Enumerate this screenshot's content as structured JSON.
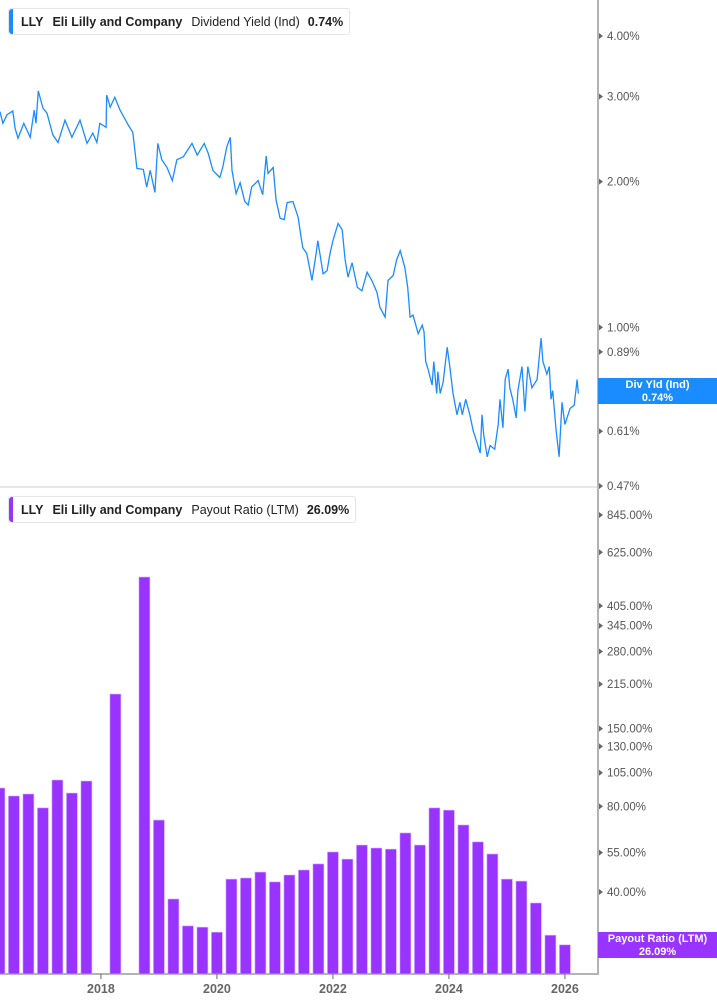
{
  "colors": {
    "yield": "#1a8cff",
    "payout": "#9933ff",
    "axis": "#b3b3b3"
  },
  "top_panel": {
    "legend": {
      "ticker": "LLY",
      "company": "Eli Lilly and Company",
      "metric": "Dividend Yield (Ind)",
      "value": "0.74%"
    },
    "tag": {
      "label": "Div Yld (Ind)",
      "value": "0.74%"
    },
    "y_ticks": [
      "4.00%",
      "3.00%",
      "2.00%",
      "1.00%",
      "0.89%",
      "0.75%",
      "0.61%",
      "0.47%"
    ]
  },
  "bottom_panel": {
    "legend": {
      "ticker": "LLY",
      "company": "Eli Lilly and Company",
      "metric": "Payout Ratio (LTM)",
      "value": "26.09%"
    },
    "tag": {
      "label": "Payout Ratio (LTM)",
      "value": "26.09%"
    },
    "y_ticks": [
      "845.00%",
      "625.00%",
      "405.00%",
      "345.00%",
      "280.00%",
      "215.00%",
      "150.00%",
      "130.00%",
      "105.00%",
      "80.00%",
      "55.00%",
      "40.00%",
      "25.00%"
    ]
  },
  "x_ticks": [
    "2018",
    "2020",
    "2022",
    "2024",
    "2026"
  ],
  "chart_data": [
    {
      "type": "line",
      "series": [
        {
          "name": "Dividend Yield (Ind)",
          "x": [
            2016.26,
            2016.31,
            2016.38,
            2016.48,
            2016.52,
            2016.57,
            2016.67,
            2016.78,
            2016.85,
            2016.88,
            2016.92,
            2017.0,
            2017.07,
            2017.17,
            2017.26,
            2017.38,
            2017.5,
            2017.64,
            2017.76,
            2017.86,
            2017.93,
            2017.98,
            2018.09,
            2018.1,
            2018.16,
            2018.24,
            2018.33,
            2018.47,
            2018.55,
            2018.59,
            2018.62,
            2018.73,
            2018.79,
            2018.85,
            2018.93,
            2018.98,
            2019.05,
            2019.14,
            2019.23,
            2019.31,
            2019.42,
            2019.57,
            2019.66,
            2019.78,
            2019.85,
            2019.93,
            2020.05,
            2020.1,
            2020.17,
            2020.23,
            2020.26,
            2020.33,
            2020.4,
            2020.48,
            2020.54,
            2020.6,
            2020.71,
            2020.79,
            2020.85,
            2020.88,
            2020.97,
            2021.02,
            2021.09,
            2021.16,
            2021.21,
            2021.31,
            2021.4,
            2021.45,
            2021.48,
            2021.55,
            2021.64,
            2021.71,
            2021.74,
            2021.83,
            2021.9,
            2021.95,
            2022.0,
            2022.09,
            2022.16,
            2022.21,
            2022.26,
            2022.33,
            2022.42,
            2022.5,
            2022.59,
            2022.67,
            2022.76,
            2022.81,
            2022.9,
            2022.95,
            2023.04,
            2023.1,
            2023.16,
            2023.24,
            2023.29,
            2023.33,
            2023.38,
            2023.47,
            2023.54,
            2023.57,
            2023.6,
            2023.64,
            2023.71,
            2023.74,
            2023.79,
            2023.81,
            2023.85,
            2023.9,
            2023.97,
            2024.02,
            2024.07,
            2024.14,
            2024.19,
            2024.23,
            2024.29,
            2024.36,
            2024.42,
            2024.48,
            2024.54,
            2024.57,
            2024.6,
            2024.66,
            2024.71,
            2024.79,
            2024.85,
            2024.88,
            2024.93,
            2024.97,
            2025.02,
            2025.05,
            2025.1,
            2025.16,
            2025.19,
            2025.26,
            2025.31,
            2025.36,
            2025.43,
            2025.52,
            2025.59,
            2025.62,
            2025.69,
            2025.73,
            2025.76,
            2025.79,
            2025.85,
            2025.9,
            2025.95,
            2026.0,
            2026.09,
            2026.16,
            2026.21,
            2026.23
          ],
          "y": [
            2.79,
            2.64,
            2.75,
            2.8,
            2.58,
            2.46,
            2.64,
            2.47,
            2.81,
            2.64,
            3.08,
            2.84,
            2.77,
            2.5,
            2.41,
            2.68,
            2.47,
            2.68,
            2.4,
            2.52,
            2.41,
            2.64,
            2.59,
            3.02,
            2.85,
            2.99,
            2.81,
            2.62,
            2.53,
            2.3,
            2.13,
            2.12,
            1.95,
            2.11,
            1.9,
            2.4,
            2.22,
            2.14,
            2.01,
            2.22,
            2.25,
            2.4,
            2.27,
            2.4,
            2.29,
            2.11,
            2.04,
            2.14,
            2.36,
            2.47,
            2.11,
            1.89,
            1.99,
            1.82,
            1.79,
            1.95,
            2.01,
            1.88,
            2.26,
            2.08,
            2.14,
            1.83,
            1.68,
            1.67,
            1.81,
            1.82,
            1.69,
            1.54,
            1.46,
            1.42,
            1.25,
            1.42,
            1.51,
            1.29,
            1.31,
            1.42,
            1.51,
            1.64,
            1.59,
            1.38,
            1.27,
            1.36,
            1.21,
            1.19,
            1.3,
            1.25,
            1.18,
            1.1,
            1.05,
            1.25,
            1.28,
            1.38,
            1.44,
            1.33,
            1.21,
            1.05,
            1.06,
            0.97,
            1.01,
            0.98,
            0.85,
            0.82,
            0.76,
            0.85,
            0.73,
            0.81,
            0.73,
            0.77,
            0.91,
            0.82,
            0.73,
            0.66,
            0.7,
            0.66,
            0.71,
            0.66,
            0.61,
            0.58,
            0.55,
            0.66,
            0.6,
            0.54,
            0.57,
            0.56,
            0.63,
            0.71,
            0.62,
            0.78,
            0.82,
            0.75,
            0.71,
            0.65,
            0.74,
            0.83,
            0.67,
            0.83,
            0.75,
            0.78,
            0.95,
            0.85,
            0.8,
            0.83,
            0.71,
            0.74,
            0.61,
            0.54,
            0.7,
            0.63,
            0.68,
            0.69,
            0.78,
            0.73
          ]
        }
      ],
      "ylabel": "",
      "yscale": "log",
      "ylim": [
        0.47,
        4.0
      ],
      "last_value": 0.74
    },
    {
      "type": "bar",
      "categories": [
        "Q1 2016",
        "Q2 2016",
        "Q3 2016",
        "Q4 2016",
        "Q1 2017",
        "Q2 2017",
        "Q3 2017",
        "Q4 2017",
        "Q1 2018",
        "Q2 2018",
        "Q3 2018",
        "Q4 2018",
        "Q1 2019",
        "Q2 2019",
        "Q3 2019",
        "Q4 2019",
        "Q1 2020",
        "Q2 2020",
        "Q3 2020",
        "Q4 2020",
        "Q1 2021",
        "Q2 2021",
        "Q3 2021",
        "Q4 2021",
        "Q1 2022",
        "Q2 2022",
        "Q3 2022",
        "Q4 2022",
        "Q1 2023",
        "Q2 2023",
        "Q3 2023",
        "Q4 2023",
        "Q1 2024",
        "Q2 2024",
        "Q3 2024",
        "Q4 2024",
        "Q1 2025",
        "Q2 2025",
        "Q3 2025",
        "Q4 2025"
      ],
      "series": [
        {
          "name": "Payout Ratio (LTM)",
          "values": [
            92.8,
            87.0,
            88.4,
            79.0,
            99.0,
            89.1,
            98.2,
            null,
            198.5,
            null,
            511.6,
            71.6,
            37.8,
            30.4,
            30.1,
            28.9,
            44.4,
            44.8,
            47.0,
            43.4,
            45.9,
            47.8,
            50.2,
            55.3,
            52.2,
            58.5,
            57.1,
            56.6,
            64.5,
            58.5,
            79.0,
            77.6,
            68.8,
            60.0,
            54.4,
            44.4,
            43.7,
            36.6,
            28.2,
            26.09
          ]
        }
      ],
      "yscale": "log",
      "ylim": [
        25,
        845
      ],
      "last_value": 26.09
    }
  ]
}
